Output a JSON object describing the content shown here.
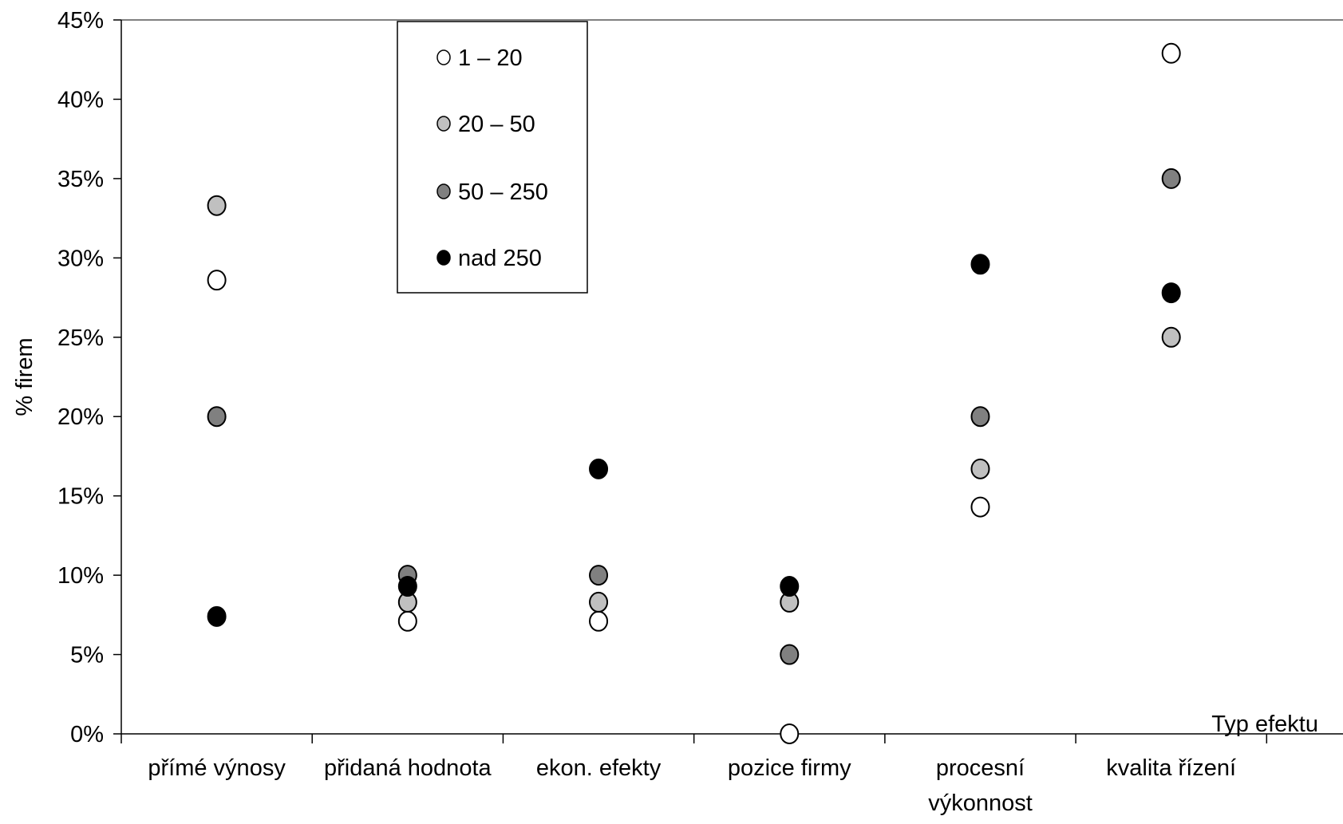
{
  "chart_data": {
    "type": "scatter",
    "title": "",
    "xlabel": "Typ efektu",
    "ylabel": "% firem",
    "ylim": [
      0,
      45
    ],
    "y_tick_step": 5,
    "y_tick_format": "percent",
    "grid": false,
    "legend_position": "top-left",
    "categories": [
      [
        "přímé výnosy"
      ],
      [
        "přidaná hodnota"
      ],
      [
        "ekon. efekty"
      ],
      [
        "pozice firmy"
      ],
      [
        "procesní",
        "výkonnost"
      ],
      [
        "kvalita řízení"
      ]
    ],
    "series": [
      {
        "name": "1 – 20",
        "color": "#ffffff",
        "values": [
          28.6,
          7.1,
          7.1,
          0.0,
          14.3,
          42.9
        ]
      },
      {
        "name": "20 – 50",
        "color": "#c0c0c0",
        "values": [
          33.3,
          8.3,
          8.3,
          8.3,
          16.7,
          25.0
        ]
      },
      {
        "name": "50 – 250",
        "color": "#808080",
        "values": [
          20.0,
          10.0,
          10.0,
          5.0,
          20.0,
          35.0
        ]
      },
      {
        "name": "nad 250",
        "color": "#000000",
        "values": [
          7.4,
          9.3,
          16.7,
          9.3,
          29.6,
          27.8
        ]
      }
    ]
  }
}
